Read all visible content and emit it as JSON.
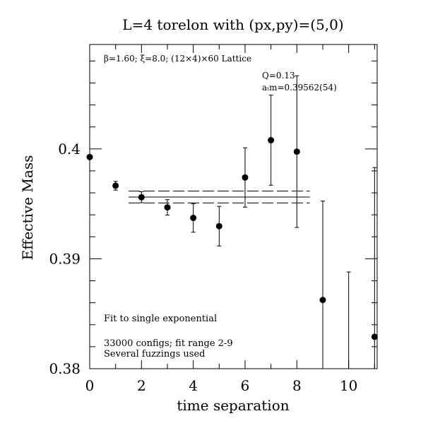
{
  "chart_data": {
    "type": "scatter",
    "title": "L=4 torelon with (px,py)=(5,0)",
    "xlabel": "time separation",
    "ylabel": "Effective Mass",
    "xlim": [
      0,
      11.1
    ],
    "ylim": [
      0.38,
      0.4095
    ],
    "x_ticks": [
      0,
      2,
      4,
      6,
      8,
      10
    ],
    "x_tick_labels": [
      "0",
      "2",
      "4",
      "6",
      "8",
      "10"
    ],
    "y_ticks": [
      0.38,
      0.39,
      0.4
    ],
    "y_tick_labels": [
      "0.38",
      "0.39",
      "0.4"
    ],
    "annotations": {
      "lattice": "β=1.60; ξ=8.0; (12×4)×60 Lattice",
      "q_value": "Q=0.13",
      "mass_fit": "aₜm=0.39562(54)",
      "fit_note": "Fit to single exponential",
      "configs": "33000 configs; fit range 2-9",
      "fuzzing": "Several fuzzings used"
    },
    "series": [
      {
        "points": [
          {
            "x": 0,
            "y": 0.39926,
            "err": 0.0001
          },
          {
            "x": 1,
            "y": 0.39665,
            "err": 0.0004
          },
          {
            "x": 2,
            "y": 0.3956,
            "err": 0.0005
          },
          {
            "x": 3,
            "y": 0.39468,
            "err": 0.0007
          },
          {
            "x": 4,
            "y": 0.39372,
            "err": 0.0013
          },
          {
            "x": 5,
            "y": 0.39297,
            "err": 0.0018
          },
          {
            "x": 6,
            "y": 0.3974,
            "err": 0.0027
          },
          {
            "x": 7,
            "y": 0.40079,
            "err": 0.0041
          },
          {
            "x": 8,
            "y": 0.39975,
            "err": 0.0069
          },
          {
            "x": 9,
            "y": 0.38625,
            "err": 0.009
          },
          {
            "x": 10,
            "y": null,
            "err_low": 0.38,
            "err_high": 0.3888
          },
          {
            "x": 11,
            "y": 0.3829,
            "err": 0.0154
          }
        ]
      }
    ],
    "fit": {
      "x_range": [
        1.5,
        8.5
      ],
      "central": 0.39562,
      "error": 0.00054
    }
  }
}
